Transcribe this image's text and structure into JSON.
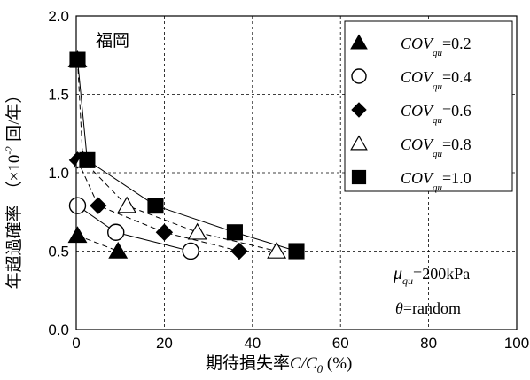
{
  "chart_data": {
    "type": "scatter",
    "xlabel_prefix": "期待損失率",
    "xlabel_var": "C/C",
    "xlabel_sub": "0",
    "xlabel_unit": " (%)",
    "ylabel_main": "年超過確率",
    "ylabel_unit_open": "（×10",
    "ylabel_unit_exp": "-2",
    "ylabel_unit_close": " 回/年）",
    "xlim": [
      0,
      100
    ],
    "ylim": [
      0.0,
      2.0
    ],
    "xticks": [
      0,
      20,
      40,
      60,
      80,
      100
    ],
    "yticks": [
      0.0,
      0.5,
      1.0,
      1.5,
      2.0
    ],
    "ytick_labels": [
      "0.0",
      "0.5",
      "1.0",
      "1.5",
      "2.0"
    ],
    "grid": true,
    "legend_position": "top-right",
    "annotations": {
      "place": "福岡",
      "mu_symbol": "μ",
      "mu_sub": "qu",
      "mu_value": "=200kPa",
      "theta_symbol": "θ",
      "theta_value": "=random"
    },
    "series": [
      {
        "name": "COV_qu=0.2",
        "label_main": "COV",
        "label_sub": "qu",
        "label_value": "=0.2",
        "marker": "triangle-filled",
        "points": [
          [
            0.3,
            0.6
          ],
          [
            9.5,
            0.5
          ]
        ],
        "line": "dashed"
      },
      {
        "name": "COV_qu=0.4",
        "label_main": "COV",
        "label_sub": "qu",
        "label_value": "=0.4",
        "marker": "circle-open",
        "points": [
          [
            0.3,
            0.79
          ],
          [
            9.0,
            0.62
          ],
          [
            26.0,
            0.5
          ]
        ],
        "line": "solid"
      },
      {
        "name": "COV_qu=0.6",
        "label_main": "COV",
        "label_sub": "qu",
        "label_value": "=0.6",
        "marker": "diamond-filled",
        "points": [
          [
            0.3,
            1.08
          ],
          [
            5.0,
            0.79
          ],
          [
            20.0,
            0.62
          ],
          [
            37.0,
            0.5
          ]
        ],
        "line": "dashed"
      },
      {
        "name": "COV_qu=0.8",
        "label_main": "COV",
        "label_sub": "qu",
        "label_value": "=0.8",
        "marker": "triangle-open",
        "points": [
          [
            0.3,
            1.72
          ],
          [
            1.5,
            1.08
          ],
          [
            11.5,
            0.79
          ],
          [
            27.5,
            0.62
          ],
          [
            45.5,
            0.5
          ]
        ],
        "line": "dashed"
      },
      {
        "name": "COV_qu=1.0",
        "label_main": "COV",
        "label_sub": "qu",
        "label_value": "=1.0",
        "marker": "square-filled",
        "points": [
          [
            0.3,
            1.72
          ],
          [
            2.5,
            1.08
          ],
          [
            18.0,
            0.79
          ],
          [
            36.0,
            0.62
          ],
          [
            50.0,
            0.5
          ]
        ],
        "line": "solid"
      }
    ]
  }
}
